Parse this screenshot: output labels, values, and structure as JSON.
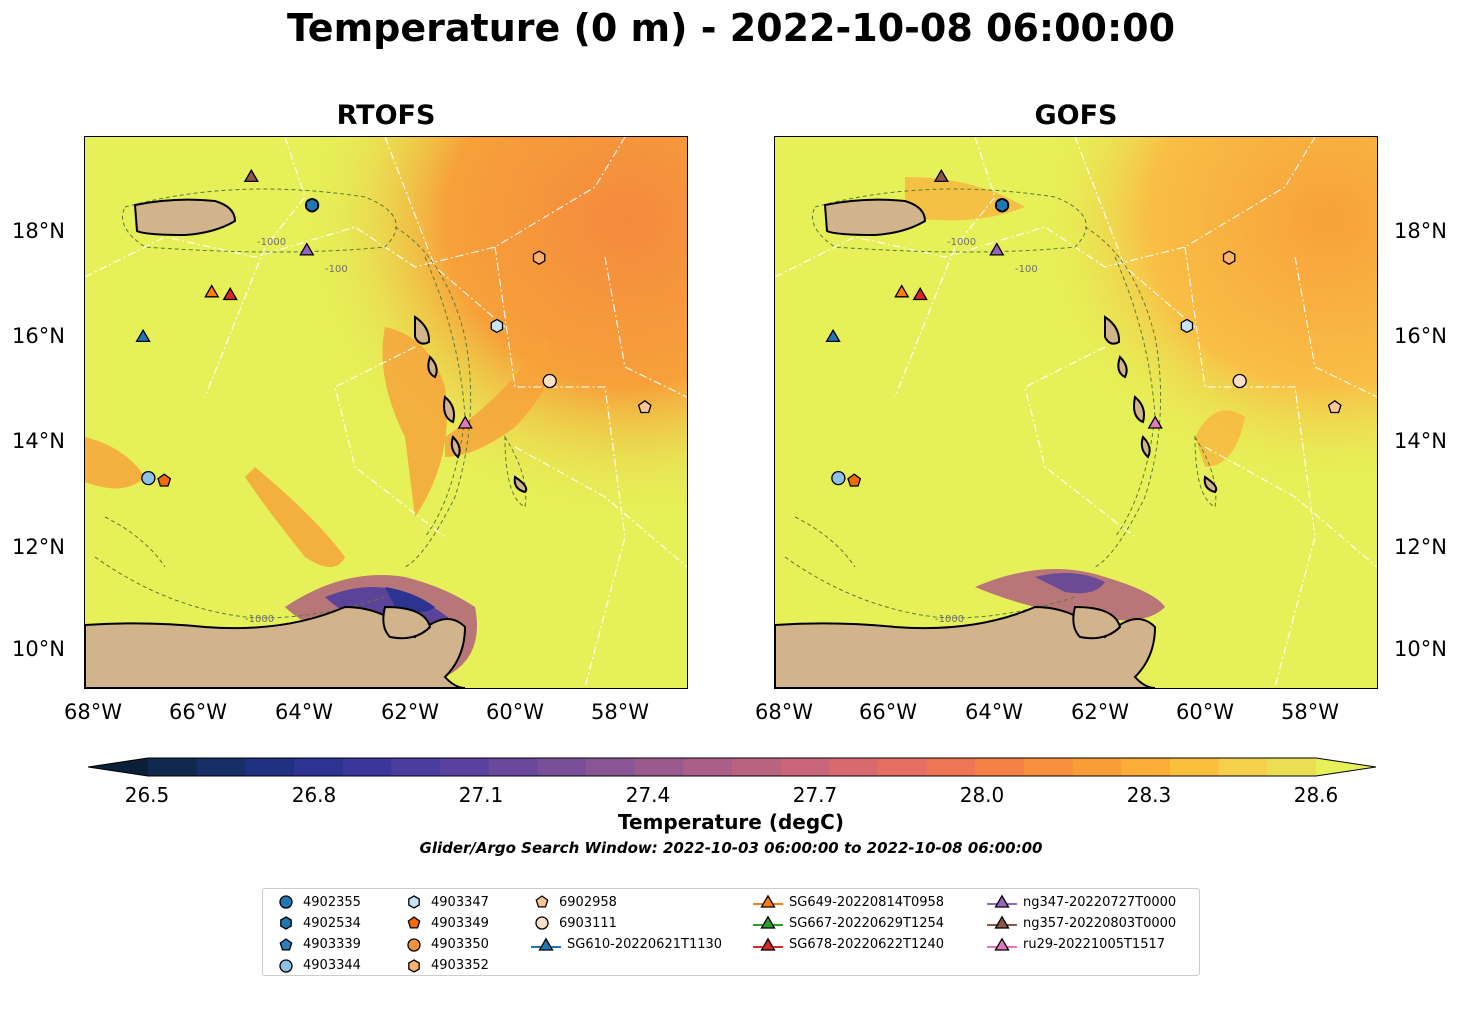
{
  "title": "Temperature (0 m) - 2022-10-08 06:00:00",
  "panels": [
    {
      "title": "RTOFS"
    },
    {
      "title": "GOFS"
    }
  ],
  "lon_ticks": [
    "68°W",
    "66°W",
    "64°W",
    "62°W",
    "60°W",
    "58°W"
  ],
  "lat_ticks": [
    "18°N",
    "16°N",
    "14°N",
    "12°N",
    "10°N"
  ],
  "contour_labels": [
    "-1000",
    "-100"
  ],
  "colorbar": {
    "ticks": [
      "26.5",
      "26.8",
      "27.1",
      "27.4",
      "27.7",
      "28.0",
      "28.3",
      "28.6"
    ],
    "label": "Temperature (degC)",
    "colors": [
      "#0b2038",
      "#10294d",
      "#162f67",
      "#1f3180",
      "#2c3391",
      "#3a369b",
      "#4a3b9f",
      "#5a419f",
      "#6a499d",
      "#7a4f99",
      "#8a5594",
      "#9a5a8e",
      "#aa5f88",
      "#ba6381",
      "#c96679",
      "#d86a6f",
      "#e56f63",
      "#ee7655",
      "#f48247",
      "#f78f3d",
      "#f99e37",
      "#fbad37",
      "#fbbf3e",
      "#f6d04a",
      "#ecde53",
      "#e6f058"
    ],
    "range": [
      26.5,
      28.6
    ]
  },
  "search_window": "Glider/Argo Search Window: 2022-10-03 06:00:00 to 2022-10-08 06:00:00",
  "legend": {
    "columns": [
      [
        {
          "label": "4902355",
          "marker": "circle",
          "color": "#1f77b4"
        },
        {
          "label": "4902534",
          "marker": "hexagon",
          "color": "#1f77b4"
        },
        {
          "label": "4903339",
          "marker": "pentagon",
          "color": "#2c7fb8"
        },
        {
          "label": "4903344",
          "marker": "circle",
          "color": "#8ec1e6"
        }
      ],
      [
        {
          "label": "4903347",
          "marker": "hexagon",
          "color": "#c6e3f7"
        },
        {
          "label": "4903349",
          "marker": "pentagon",
          "color": "#f26b07"
        },
        {
          "label": "4903350",
          "marker": "circle",
          "color": "#f7913d"
        },
        {
          "label": "4903352",
          "marker": "hexagon",
          "color": "#fbb26b"
        }
      ],
      [
        {
          "label": "6902958",
          "marker": "pentagon",
          "color": "#fbc894"
        },
        {
          "label": "6903111",
          "marker": "circle",
          "color": "#fde0c5"
        },
        {
          "label": "SG610-20220621T1130",
          "marker": "triangle-line",
          "color": "#1f77b4"
        }
      ],
      [
        {
          "label": "SG649-20220814T0958",
          "marker": "triangle-line",
          "color": "#ff7f0e"
        },
        {
          "label": "SG667-20220629T1254",
          "marker": "triangle-line",
          "color": "#2ca02c"
        },
        {
          "label": "SG678-20220622T1240",
          "marker": "triangle-line",
          "color": "#d62728"
        }
      ],
      [
        {
          "label": "ng347-20220727T0000",
          "marker": "triangle-line",
          "color": "#9467bd"
        },
        {
          "label": "ng357-20220803T0000",
          "marker": "triangle-line",
          "color": "#8c564b"
        },
        {
          "label": "ru29-20221005T1517",
          "marker": "triangle-line",
          "color": "#e377c2"
        }
      ]
    ]
  },
  "map_extent": {
    "lon": [
      -68.2,
      -56.8
    ],
    "lat": [
      9.3,
      19.8
    ]
  },
  "markers": [
    {
      "id": "4902355",
      "marker": "circle",
      "color": "#1f77b4",
      "lon": -63.9,
      "lat": 18.5
    },
    {
      "id": "4902534",
      "marker": "hexagon",
      "color": "#1f77b4",
      "lon": -63.9,
      "lat": 18.5
    },
    {
      "id": "4903344",
      "marker": "circle",
      "color": "#8ec1e6",
      "lon": -67.0,
      "lat": 13.3
    },
    {
      "id": "4903347",
      "marker": "hexagon",
      "color": "#c6e3f7",
      "lon": -60.4,
      "lat": 16.2
    },
    {
      "id": "4903349",
      "marker": "pentagon",
      "color": "#f26b07",
      "lon": -66.7,
      "lat": 13.25
    },
    {
      "id": "4903352",
      "marker": "hexagon",
      "color": "#fbb26b",
      "lon": -59.6,
      "lat": 17.5
    },
    {
      "id": "6902958",
      "marker": "pentagon",
      "color": "#fbc894",
      "lon": -57.6,
      "lat": 14.65
    },
    {
      "id": "6903111",
      "marker": "circle",
      "color": "#fde0c5",
      "lon": -59.4,
      "lat": 15.15
    },
    {
      "id": "SG610-20220621T1130",
      "marker": "triangle",
      "color": "#1f77b4",
      "lon": -67.1,
      "lat": 16.0
    },
    {
      "id": "SG649-20220814T0958",
      "marker": "triangle",
      "color": "#ff7f0e",
      "lon": -65.8,
      "lat": 16.85
    },
    {
      "id": "SG678-20220622T1240",
      "marker": "triangle",
      "color": "#d62728",
      "lon": -65.45,
      "lat": 16.8
    },
    {
      "id": "ng347-20220727T0000",
      "marker": "triangle",
      "color": "#9467bd",
      "lon": -64.0,
      "lat": 17.65
    },
    {
      "id": "ng357-20220803T0000",
      "marker": "triangle",
      "color": "#8c564b",
      "lon": -65.05,
      "lat": 19.05
    },
    {
      "id": "ru29-20221005T1517",
      "marker": "triangle",
      "color": "#e377c2",
      "lon": -61.0,
      "lat": 14.35
    }
  ]
}
